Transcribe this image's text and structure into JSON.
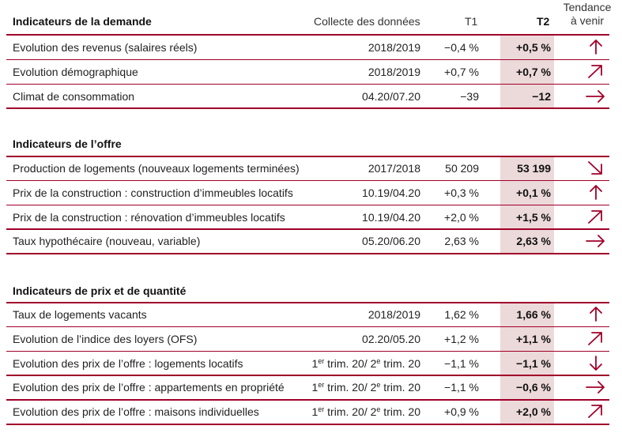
{
  "header": {
    "title": "Indicateurs de la demande",
    "collection": "Collecte des données",
    "t1": "T1",
    "t2": "T2",
    "trend_line1": "Tendance",
    "trend_line2": "à venir"
  },
  "sections": [
    {
      "title": "Indicateurs de la demande",
      "rows": [
        {
          "label": "Evolution des revenus (salaires réels)",
          "collection": "2018/2019",
          "t1": "−0,4 %",
          "t2": "+0,5 %",
          "trend": "up"
        },
        {
          "label": "Evolution démographique",
          "collection": "2018/2019",
          "t1": "+0,7 %",
          "t2": "+0,7 %",
          "trend": "up-right"
        },
        {
          "label": "Climat de consommation",
          "collection": "04.20/07.20",
          "t1": "−39",
          "t2": "−12",
          "trend": "right"
        }
      ]
    },
    {
      "title": "Indicateurs de l’offre",
      "rows": [
        {
          "label": "Production de logements (nouveaux logements terminées)",
          "collection": "2017/2018",
          "t1": "50 209",
          "t2": "53 199",
          "trend": "down-right"
        },
        {
          "label": "Prix de la construction : construction d’immeubles locatifs",
          "collection": "10.19/04.20",
          "t1": "+0,3 %",
          "t2": "+0,1 %",
          "trend": "up"
        },
        {
          "label": "Prix de la construction : rénovation d’immeubles locatifs",
          "collection": "10.19/04.20",
          "t1": "+2,0 %",
          "t2": "+1,5 %",
          "trend": "up-right"
        },
        {
          "label": "Taux hypothécaire (nouveau, variable)",
          "collection": "05.20/06.20",
          "t1": "2,63 %",
          "t2": "2,63 %",
          "trend": "right"
        }
      ]
    },
    {
      "title": "Indicateurs de prix et de quantité",
      "rows": [
        {
          "label": "Taux de logements vacants",
          "collection": "2018/2019",
          "t1": "1,62 %",
          "t2": "1,66 %",
          "trend": "up"
        },
        {
          "label": "Evolution de l’indice des loyers (OFS)",
          "collection": "02.20/05.20",
          "t1": "+1,2 %",
          "t2": "+1,1 %",
          "trend": "up-right"
        },
        {
          "label": "Evolution des prix de l’offre : logements locatifs",
          "collection": {
            "a": "1",
            "a_sup": "er",
            "b": " trim. 20/ 2",
            "b_sup": "e",
            "c": " trim. 20"
          },
          "t1": "−1,1 %",
          "t2": "−1,1 %",
          "trend": "down"
        },
        {
          "label": "Evolution des prix de l’offre : appartements en propriété",
          "collection": {
            "a": "1",
            "a_sup": "er",
            "b": " trim. 20/ 2",
            "b_sup": "e",
            "c": " trim. 20"
          },
          "t1": "−1,1 %",
          "t2": "−0,6 %",
          "trend": "right"
        },
        {
          "label": "Evolution des prix de l’offre : maisons individuelles",
          "collection": {
            "a": "1",
            "a_sup": "er",
            "b": " trim. 20/ 2",
            "b_sup": "e",
            "c": " trim. 20"
          },
          "t1": "+0,9 %",
          "t2": "+2,0 %",
          "trend": "up-right"
        }
      ]
    }
  ],
  "colors": {
    "accent": "#a0002a",
    "highlight": "#ecd9d9"
  }
}
